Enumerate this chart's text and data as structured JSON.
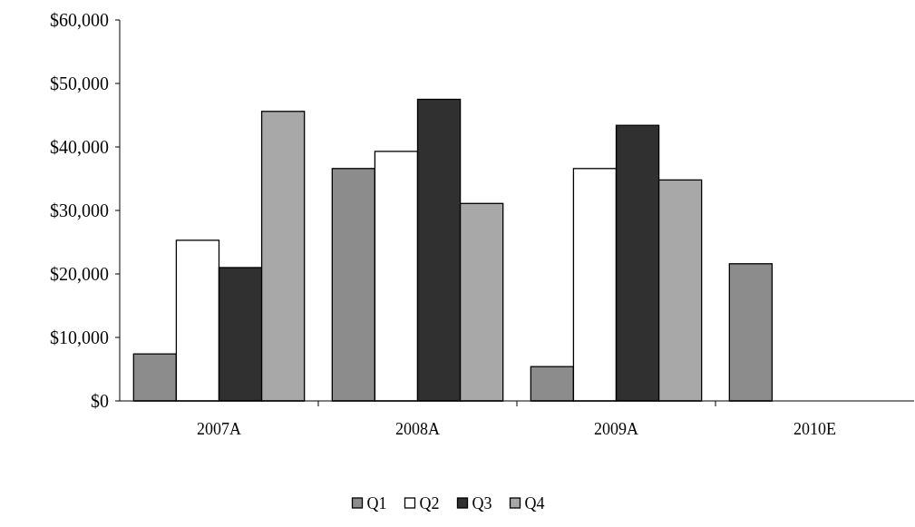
{
  "chart_data": {
    "type": "bar",
    "categories": [
      "2007A",
      "2008A",
      "2009A",
      "2010E"
    ],
    "series": [
      {
        "name": "Q1",
        "color": "#8c8c8c",
        "values": [
          7400,
          36600,
          5400,
          21600
        ]
      },
      {
        "name": "Q2",
        "color": "#ffffff",
        "values": [
          25300,
          39300,
          36600,
          null
        ]
      },
      {
        "name": "Q3",
        "color": "#303030",
        "values": [
          21000,
          47500,
          43400,
          null
        ]
      },
      {
        "name": "Q4",
        "color": "#a8a8a8",
        "values": [
          45600,
          31100,
          34800,
          null
        ]
      }
    ],
    "ylim": [
      0,
      60000
    ],
    "yticks": [
      {
        "value": 0,
        "label": "$0"
      },
      {
        "value": 10000,
        "label": "$10,000"
      },
      {
        "value": 20000,
        "label": "$20,000"
      },
      {
        "value": 30000,
        "label": "$30,000"
      },
      {
        "value": 40000,
        "label": "$40,000"
      },
      {
        "value": 50000,
        "label": "$50,000"
      },
      {
        "value": 60000,
        "label": "$60,000"
      }
    ],
    "grid": false,
    "legend": "bottom"
  }
}
